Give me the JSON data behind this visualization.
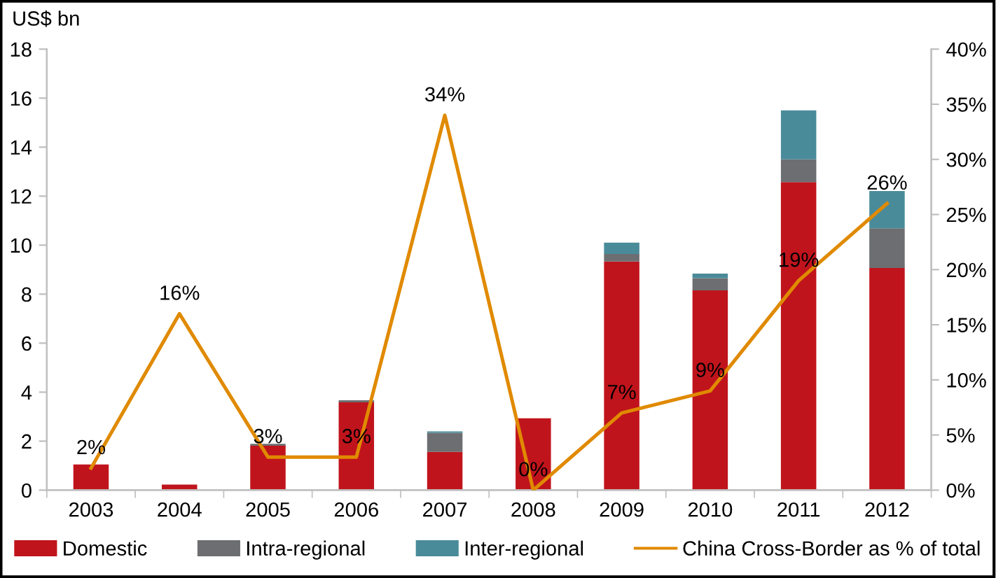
{
  "chart_data": {
    "type": "bar",
    "stacked": true,
    "ylabel": "US$ bn",
    "categories": [
      "2003",
      "2004",
      "2005",
      "2006",
      "2007",
      "2008",
      "2009",
      "2010",
      "2011",
      "2012"
    ],
    "series": [
      {
        "name": "Domestic",
        "color": "#c0141c",
        "values": [
          1.05,
          0.23,
          1.81,
          3.58,
          1.56,
          2.93,
          9.33,
          8.15,
          12.57,
          9.07
        ]
      },
      {
        "name": "Intra-regional",
        "color": "#6d6e71",
        "values": [
          0,
          0,
          0.08,
          0.09,
          0.78,
          0,
          0.31,
          0.5,
          0.93,
          1.62
        ]
      },
      {
        "name": "Inter-regional",
        "color": "#4a8b9a",
        "values": [
          0,
          0,
          0,
          0,
          0.06,
          0,
          0.46,
          0.19,
          2.0,
          1.52
        ]
      },
      {
        "name": "China Cross-Border as % of total",
        "type": "line",
        "axis": "y2",
        "color": "#e08a00",
        "marker": "none",
        "line_style": "solid",
        "data_labels": true,
        "value_labels": [
          "2%",
          "16%",
          "3%",
          "3%",
          "34%",
          "0%",
          "7%",
          "9%",
          "19%",
          "26%"
        ],
        "values": [
          2,
          16,
          3,
          3,
          34,
          0,
          7,
          9,
          19,
          26
        ]
      }
    ],
    "ylim": [
      0,
      18
    ],
    "yticks": [
      0,
      2,
      4,
      6,
      8,
      10,
      12,
      14,
      16,
      18
    ],
    "y2lim": [
      0,
      40
    ],
    "y2ticks": [
      {
        "value": 0,
        "label": "0%"
      },
      {
        "value": 5,
        "label": "5%"
      },
      {
        "value": 10,
        "label": "10%"
      },
      {
        "value": 15,
        "label": "15%"
      },
      {
        "value": 20,
        "label": "20%"
      },
      {
        "value": 25,
        "label": "25%"
      },
      {
        "value": 30,
        "label": "30%"
      },
      {
        "value": 35,
        "label": "35%"
      },
      {
        "value": 40,
        "label": "40%"
      }
    ],
    "grid": false,
    "legend": "bottom"
  }
}
